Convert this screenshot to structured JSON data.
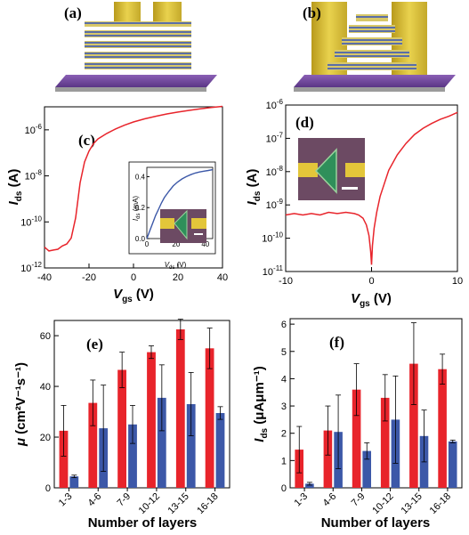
{
  "colors": {
    "red": "#e8242b",
    "blue": "#3c58a8",
    "gold": "#d8c23c",
    "substrate": "#6a3f97",
    "green": "#2f8f5a"
  },
  "panels": {
    "a": {
      "label": "(a)",
      "depicts": "top-contact device schematic"
    },
    "b": {
      "label": "(b)",
      "depicts": "edge-contact device schematic"
    }
  },
  "chart_data": [
    {
      "panel": "(c)",
      "type": "line",
      "color": "red",
      "xlabel": "V",
      "xlabel_sub": "gs",
      "xunit": "(V)",
      "ylabel": "I",
      "ylabel_sub": "ds",
      "yunit": "(A)",
      "xlim": [
        -40,
        40
      ],
      "ylog": true,
      "ylim": [
        1e-12,
        1e-05
      ],
      "xticks": [
        "-40",
        "-20",
        "0",
        "20",
        "40"
      ],
      "yticks": [
        {
          "m": "10",
          "e": "-12"
        },
        {
          "m": "10",
          "e": "-10"
        },
        {
          "m": "10",
          "e": "-8"
        },
        {
          "m": "10",
          "e": "-6"
        }
      ],
      "x": [
        -40,
        -38,
        -36,
        -34,
        -32,
        -30,
        -28,
        -26,
        -24,
        -22,
        -20,
        -18,
        -16,
        -12,
        -8,
        -4,
        0,
        5,
        10,
        15,
        20,
        25,
        30,
        35,
        40
      ],
      "y": [
        8e-12,
        5.5e-12,
        6e-12,
        6.5e-12,
        9e-12,
        1.1e-11,
        2e-11,
        1.5e-10,
        5e-09,
        4e-08,
        1.2e-07,
        2.5e-07,
        4e-07,
        7e-07,
        1.1e-06,
        1.6e-06,
        2.2e-06,
        3e-06,
        3.9e-06,
        4.9e-06,
        5.9e-06,
        7e-06,
        8.2e-06,
        9.3e-06,
        1.05e-05
      ],
      "inset": {
        "type": "line",
        "color": "blue",
        "xlabel": "V",
        "xlabel_sub": "ds",
        "xunit": "(V)",
        "ylabel": "I",
        "ylabel_sub": "ds",
        "yunit": "(mA)",
        "xlim": [
          0,
          45
        ],
        "ylim": [
          0,
          0.46
        ],
        "xticks": [
          "0",
          "20",
          "40"
        ],
        "yticks": [
          "0.0",
          "0.2",
          "0.4"
        ],
        "x": [
          0,
          2,
          4,
          6,
          8,
          10,
          12,
          15,
          18,
          21,
          24,
          27,
          30,
          33,
          36,
          39,
          42,
          45
        ],
        "y": [
          0,
          0.05,
          0.1,
          0.15,
          0.19,
          0.23,
          0.265,
          0.305,
          0.34,
          0.365,
          0.385,
          0.4,
          0.413,
          0.423,
          0.43,
          0.435,
          0.44,
          0.445
        ]
      }
    },
    {
      "panel": "(d)",
      "type": "line",
      "color": "red",
      "xlabel": "V",
      "xlabel_sub": "gs",
      "xunit": "(V)",
      "ylabel": "I",
      "ylabel_sub": "ds",
      "yunit": "(A)",
      "xlim": [
        -10,
        10
      ],
      "ylog": true,
      "ylim": [
        1e-11,
        1e-06
      ],
      "xticks": [
        "-10",
        "0",
        "10"
      ],
      "yticks": [
        {
          "m": "10",
          "e": "-11"
        },
        {
          "m": "10",
          "e": "-10"
        },
        {
          "m": "10",
          "e": "-9"
        },
        {
          "m": "10",
          "e": "-8"
        },
        {
          "m": "10",
          "e": "-7"
        },
        {
          "m": "10",
          "e": "-6"
        }
      ],
      "x": [
        -10,
        -9,
        -8,
        -7,
        -6,
        -5,
        -4,
        -3,
        -2,
        -1.5,
        -1,
        -0.6,
        -0.3,
        -0.1,
        0,
        0.1,
        0.3,
        0.6,
        1,
        1.5,
        2,
        3,
        4,
        5,
        6,
        7,
        8,
        9,
        10
      ],
      "y": [
        5e-10,
        5.5e-10,
        5e-10,
        5.5e-10,
        5e-10,
        6e-10,
        5.5e-10,
        6e-10,
        5.5e-10,
        5e-10,
        4e-10,
        2.5e-10,
        1.2e-10,
        4e-11,
        1.6e-11,
        6e-11,
        2e-10,
        6e-10,
        1.8e-09,
        4.5e-09,
        1.1e-08,
        3.2e-08,
        7e-08,
        1.3e-07,
        2e-07,
        2.8e-07,
        3.7e-07,
        4.6e-07,
        6e-07
      ]
    },
    {
      "panel": "(e)",
      "type": "bar",
      "xlabel": "Number of layers",
      "ylabel": "μ",
      "yunit": "(cm²V⁻¹s⁻¹)",
      "ylim": [
        0,
        66
      ],
      "yticks": [
        "0",
        "20",
        "40",
        "60"
      ],
      "categories": [
        "1-3",
        "4-6",
        "7-9",
        "10-12",
        "13-15",
        "16-18"
      ],
      "series": [
        {
          "color": "red",
          "values": [
            22.5,
            33.5,
            46.5,
            53.5,
            62.5,
            55
          ],
          "errors": [
            10,
            9,
            7,
            2.5,
            4,
            8
          ]
        },
        {
          "color": "blue",
          "values": [
            4.5,
            23.5,
            25,
            35.5,
            33,
            29.5
          ],
          "errors": [
            0.5,
            17,
            7.5,
            13,
            12.5,
            2.5
          ]
        }
      ]
    },
    {
      "panel": "(f)",
      "type": "bar",
      "xlabel": "Number of layers",
      "ylabel": "I",
      "ylabel_sub": "ds",
      "yunit": "(μAμm⁻¹)",
      "ylim": [
        0,
        6.2
      ],
      "yticks": [
        "0",
        "1",
        "2",
        "3",
        "4",
        "5",
        "6"
      ],
      "categories": [
        "1-3",
        "4-6",
        "7-9",
        "10-12",
        "13-15",
        "16-18"
      ],
      "series": [
        {
          "color": "red",
          "values": [
            1.4,
            2.1,
            3.6,
            3.3,
            4.55,
            4.35
          ],
          "errors": [
            0.85,
            0.9,
            0.95,
            0.85,
            1.5,
            0.55
          ]
        },
        {
          "color": "blue",
          "values": [
            0.15,
            2.05,
            1.35,
            2.5,
            1.9,
            1.7
          ],
          "errors": [
            0.05,
            1.35,
            0.3,
            1.6,
            0.95,
            0.05
          ]
        }
      ]
    }
  ]
}
